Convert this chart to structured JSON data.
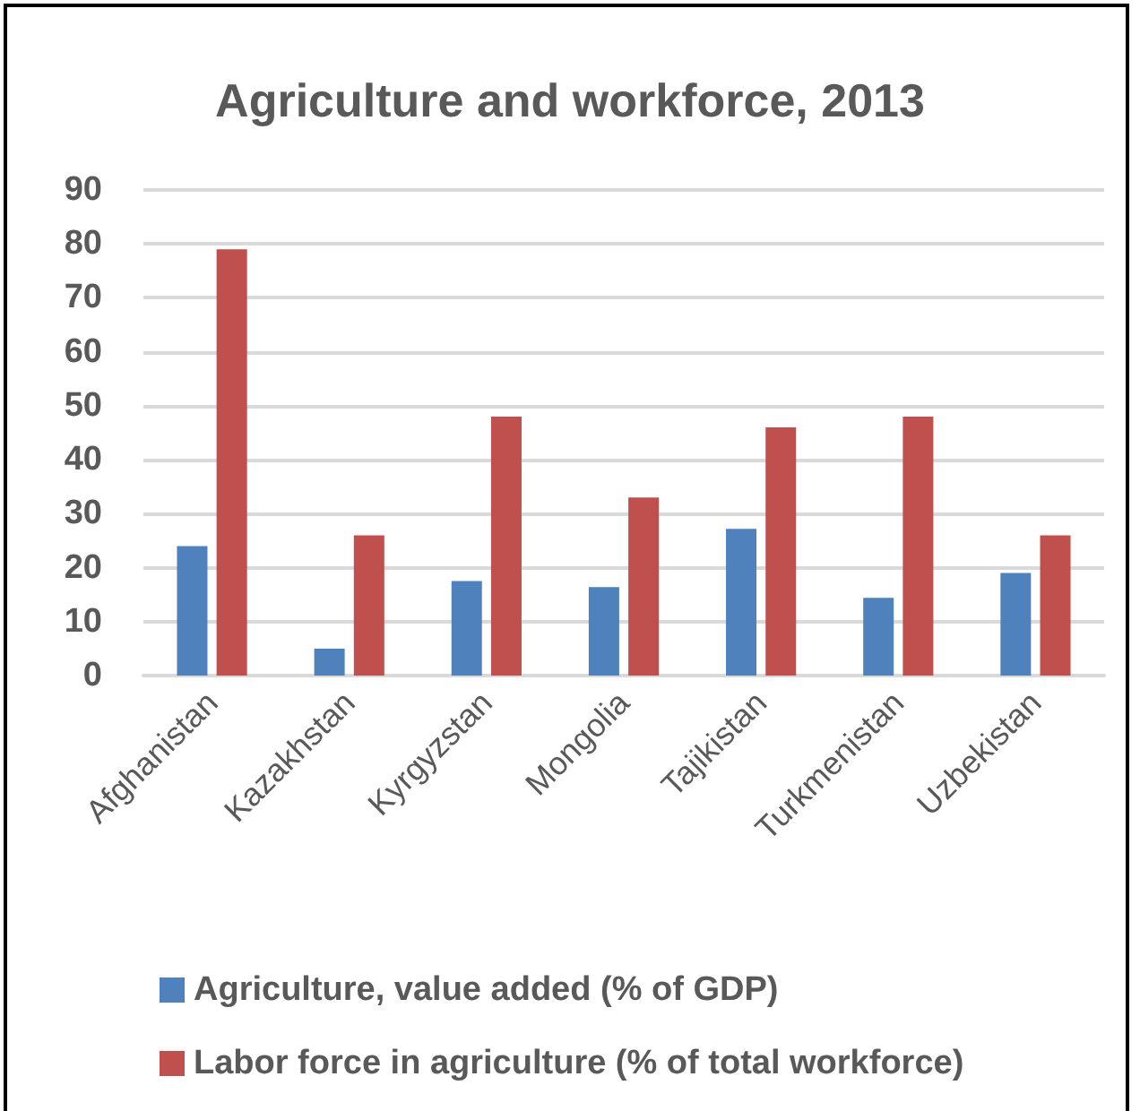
{
  "chart_data": {
    "type": "bar",
    "title": "Agriculture and workforce, 2013",
    "categories": [
      "Afghanistan",
      "Kazakhstan",
      "Kyrgyzstan",
      "Mongolia",
      "Tajikistan",
      "Turkmenistan",
      "Uzbekistan"
    ],
    "series": [
      {
        "name": "Agriculture, value added (% of GDP)",
        "color": "#4f81bd",
        "values": [
          24,
          5,
          17.5,
          16.4,
          27.2,
          14.4,
          19
        ]
      },
      {
        "name": "Labor force in agriculture (% of total workforce)",
        "color": "#c0504d",
        "values": [
          79,
          26,
          48,
          33,
          46,
          48,
          26
        ]
      }
    ],
    "ylim": [
      0,
      90
    ],
    "yticks": [
      0,
      10,
      20,
      30,
      40,
      50,
      60,
      70,
      80,
      90
    ],
    "grid": "y",
    "legend": "bottom"
  }
}
